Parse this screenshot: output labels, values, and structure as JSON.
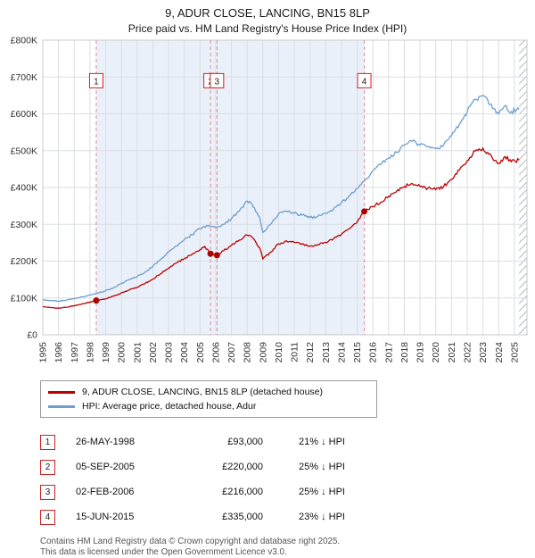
{
  "title": "9, ADUR CLOSE, LANCING, BN15 8LP",
  "subtitle": "Price paid vs. HM Land Registry's House Price Index (HPI)",
  "colors": {
    "property": "#bb0000",
    "hpi": "#6d9ece",
    "marker": "#aa0000",
    "band": "#eaf0f9",
    "dashed": "#dd7777",
    "grid": "#dadee3",
    "border": "#c8c8c8",
    "box_border": "#cc2222",
    "hatch": "#b0b8c4"
  },
  "legend": [
    {
      "label": "9, ADUR CLOSE, LANCING, BN15 8LP (detached house)"
    },
    {
      "label": "HPI: Average price, detached house, Adur"
    }
  ],
  "chart_data": {
    "type": "line",
    "title": "Price paid vs. HM Land Registry's House Price Index (HPI)",
    "xlim": [
      1995,
      2025.8
    ],
    "ylim": [
      0,
      800000
    ],
    "xticks": [
      1995,
      1996,
      1997,
      1998,
      1999,
      2000,
      2001,
      2002,
      2003,
      2004,
      2005,
      2006,
      2007,
      2008,
      2009,
      2010,
      2011,
      2012,
      2013,
      2014,
      2015,
      2016,
      2017,
      2018,
      2019,
      2020,
      2021,
      2022,
      2023,
      2024,
      2025
    ],
    "yticks": [
      "£0",
      "£100K",
      "£200K",
      "£300K",
      "£400K",
      "£500K",
      "£600K",
      "£700K",
      "£800K"
    ],
    "grid": true,
    "legend_position": "below",
    "label_y": 690000,
    "band_x": [
      1998.4,
      2015.45
    ],
    "hatch_x": [
      2025.3,
      2025.8
    ],
    "series": [
      {
        "name": "9, ADUR CLOSE, LANCING, BN15 8LP (detached house)",
        "color": "#bb0000",
        "points": [
          [
            1995,
            76000
          ],
          [
            1995.5,
            74000
          ],
          [
            1996,
            72000
          ],
          [
            1996.5,
            75000
          ],
          [
            1997,
            79000
          ],
          [
            1997.5,
            84000
          ],
          [
            1998,
            89000
          ],
          [
            1998.4,
            93000
          ],
          [
            1999,
            98000
          ],
          [
            1999.5,
            105000
          ],
          [
            2000,
            114000
          ],
          [
            2000.5,
            122000
          ],
          [
            2001,
            129000
          ],
          [
            2001.5,
            139000
          ],
          [
            2002,
            151000
          ],
          [
            2002.5,
            166000
          ],
          [
            2003,
            181000
          ],
          [
            2003.5,
            195000
          ],
          [
            2004,
            207000
          ],
          [
            2004.5,
            219000
          ],
          [
            2005,
            231000
          ],
          [
            2005.3,
            240000
          ],
          [
            2005.67,
            220000
          ],
          [
            2006.08,
            216000
          ],
          [
            2006.5,
            228000
          ],
          [
            2007,
            243000
          ],
          [
            2007.5,
            257000
          ],
          [
            2008,
            271000
          ],
          [
            2008.3,
            266000
          ],
          [
            2008.8,
            236000
          ],
          [
            2009,
            206000
          ],
          [
            2009.5,
            224000
          ],
          [
            2010,
            247000
          ],
          [
            2010.5,
            255000
          ],
          [
            2011,
            251000
          ],
          [
            2011.5,
            247000
          ],
          [
            2012,
            241000
          ],
          [
            2012.5,
            245000
          ],
          [
            2013,
            251000
          ],
          [
            2013.5,
            261000
          ],
          [
            2014,
            273000
          ],
          [
            2014.5,
            289000
          ],
          [
            2015,
            306000
          ],
          [
            2015.45,
            335000
          ],
          [
            2016,
            348000
          ],
          [
            2016.5,
            360000
          ],
          [
            2017,
            376000
          ],
          [
            2017.5,
            389000
          ],
          [
            2018,
            403000
          ],
          [
            2018.5,
            411000
          ],
          [
            2019,
            403000
          ],
          [
            2019.5,
            398000
          ],
          [
            2020,
            394000
          ],
          [
            2020.5,
            403000
          ],
          [
            2021,
            422000
          ],
          [
            2021.5,
            447000
          ],
          [
            2022,
            473000
          ],
          [
            2022.5,
            499000
          ],
          [
            2023,
            507000
          ],
          [
            2023.3,
            495000
          ],
          [
            2023.6,
            480000
          ],
          [
            2024,
            466000
          ],
          [
            2024.4,
            484000
          ],
          [
            2024.8,
            470000
          ],
          [
            2025.3,
            474000
          ]
        ]
      },
      {
        "name": "HPI: Average price, detached house, Adur",
        "color": "#6d9ece",
        "points": [
          [
            1995,
            95000
          ],
          [
            1995.5,
            93000
          ],
          [
            1996,
            91000
          ],
          [
            1996.5,
            94000
          ],
          [
            1997,
            98000
          ],
          [
            1997.5,
            103000
          ],
          [
            1998,
            108000
          ],
          [
            1998.5,
            113000
          ],
          [
            1999,
            120000
          ],
          [
            1999.5,
            128000
          ],
          [
            2000,
            140000
          ],
          [
            2000.5,
            150000
          ],
          [
            2001,
            158000
          ],
          [
            2001.5,
            170000
          ],
          [
            2002,
            186000
          ],
          [
            2002.5,
            205000
          ],
          [
            2003,
            225000
          ],
          [
            2003.5,
            242000
          ],
          [
            2004,
            258000
          ],
          [
            2004.5,
            272000
          ],
          [
            2005,
            288000
          ],
          [
            2005.5,
            295000
          ],
          [
            2006,
            291000
          ],
          [
            2006.5,
            300000
          ],
          [
            2007,
            316000
          ],
          [
            2007.5,
            336000
          ],
          [
            2008,
            363000
          ],
          [
            2008.3,
            356000
          ],
          [
            2008.8,
            318000
          ],
          [
            2009,
            278000
          ],
          [
            2009.5,
            300000
          ],
          [
            2010,
            328000
          ],
          [
            2010.5,
            336000
          ],
          [
            2011,
            330000
          ],
          [
            2011.5,
            325000
          ],
          [
            2012,
            318000
          ],
          [
            2012.5,
            322000
          ],
          [
            2013,
            330000
          ],
          [
            2013.5,
            342000
          ],
          [
            2014,
            358000
          ],
          [
            2014.5,
            378000
          ],
          [
            2015,
            398000
          ],
          [
            2015.5,
            420000
          ],
          [
            2016,
            446000
          ],
          [
            2016.5,
            462000
          ],
          [
            2017,
            480000
          ],
          [
            2017.5,
            496000
          ],
          [
            2018,
            515000
          ],
          [
            2018.5,
            525000
          ],
          [
            2019,
            516000
          ],
          [
            2019.5,
            510000
          ],
          [
            2020,
            505000
          ],
          [
            2020.5,
            516000
          ],
          [
            2021,
            540000
          ],
          [
            2021.5,
            572000
          ],
          [
            2022,
            606000
          ],
          [
            2022.5,
            640000
          ],
          [
            2023,
            650000
          ],
          [
            2023.3,
            638000
          ],
          [
            2023.6,
            616000
          ],
          [
            2024,
            600000
          ],
          [
            2024.4,
            622000
          ],
          [
            2024.8,
            606000
          ],
          [
            2025.3,
            612000
          ]
        ]
      }
    ],
    "sales": [
      {
        "label": "1",
        "x": 1998.4,
        "price": 93000
      },
      {
        "label": "2",
        "x": 2005.67,
        "price": 220000
      },
      {
        "label": "3",
        "x": 2006.08,
        "price": 216000
      },
      {
        "label": "4",
        "x": 2015.45,
        "price": 335000
      }
    ]
  },
  "table": {
    "rows": [
      {
        "num": "1",
        "date": "26-MAY-1998",
        "price": "£93,000",
        "hpi": "21% ↓ HPI"
      },
      {
        "num": "2",
        "date": "05-SEP-2005",
        "price": "£220,000",
        "hpi": "25% ↓ HPI"
      },
      {
        "num": "3",
        "date": "02-FEB-2006",
        "price": "£216,000",
        "hpi": "25% ↓ HPI"
      },
      {
        "num": "4",
        "date": "15-JUN-2015",
        "price": "£335,000",
        "hpi": "23% ↓ HPI"
      }
    ]
  },
  "footer": {
    "line1": "Contains HM Land Registry data © Crown copyright and database right 2025.",
    "line2": "This data is licensed under the Open Government Licence v3.0."
  }
}
